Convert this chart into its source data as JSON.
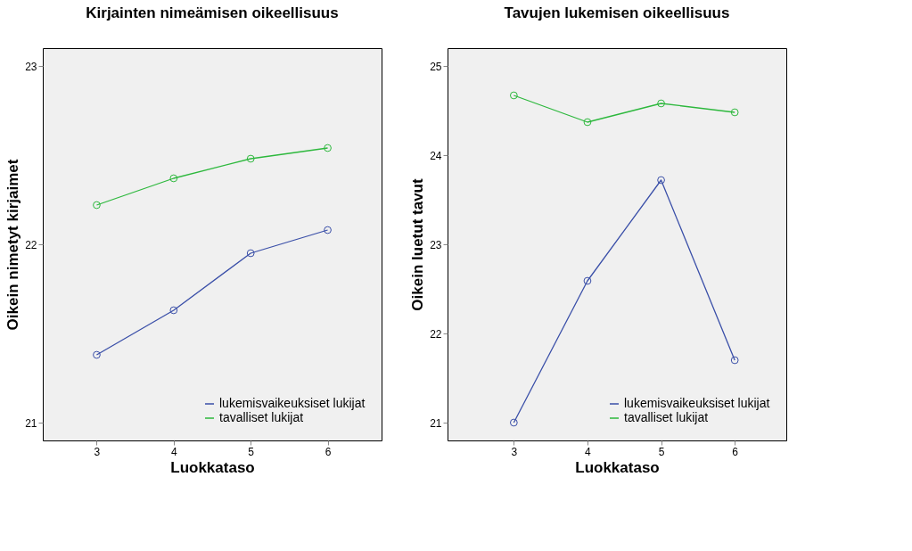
{
  "chart_data": [
    {
      "type": "line",
      "title": "Kirjainten nimeämisen oikeellisuus",
      "xlabel": "Luokkataso",
      "ylabel": "Oikein nimetyt kirjaimet",
      "x": [
        3,
        4,
        5,
        6
      ],
      "xlim": [
        2.3,
        6.7
      ],
      "xticks": [
        3,
        4,
        5,
        6
      ],
      "ylim": [
        20.9,
        23.1
      ],
      "yticks": [
        21,
        22,
        23
      ],
      "marker": "circle",
      "grid": false,
      "legend": "bottom right",
      "series": [
        {
          "name": "lukemisvaikeuksiset lukijat",
          "color": "#3a4fa8",
          "values": [
            21.38,
            21.63,
            21.95,
            22.08
          ]
        },
        {
          "name": "tavalliset lukijat",
          "color": "#2db83d",
          "values": [
            22.22,
            22.37,
            22.48,
            22.54
          ]
        }
      ]
    },
    {
      "type": "line",
      "title": "Tavujen lukemisen oikeellisuus",
      "xlabel": "Luokkataso",
      "ylabel": "Oikein luetut tavut",
      "x": [
        3,
        4,
        5,
        6
      ],
      "xlim": [
        2.1,
        6.7
      ],
      "xticks": [
        3,
        4,
        5,
        6
      ],
      "ylim": [
        20.8,
        25.2
      ],
      "yticks": [
        21,
        22,
        23,
        24,
        25
      ],
      "marker": "circle",
      "grid": false,
      "legend": "bottom right",
      "series": [
        {
          "name": "lukemisvaikeuksiset lukijat",
          "color": "#3a4fa8",
          "values": [
            21.0,
            22.59,
            23.72,
            21.7
          ]
        },
        {
          "name": "tavalliset lukijat",
          "color": "#2db83d",
          "values": [
            24.67,
            24.37,
            24.58,
            24.48
          ]
        }
      ]
    }
  ]
}
